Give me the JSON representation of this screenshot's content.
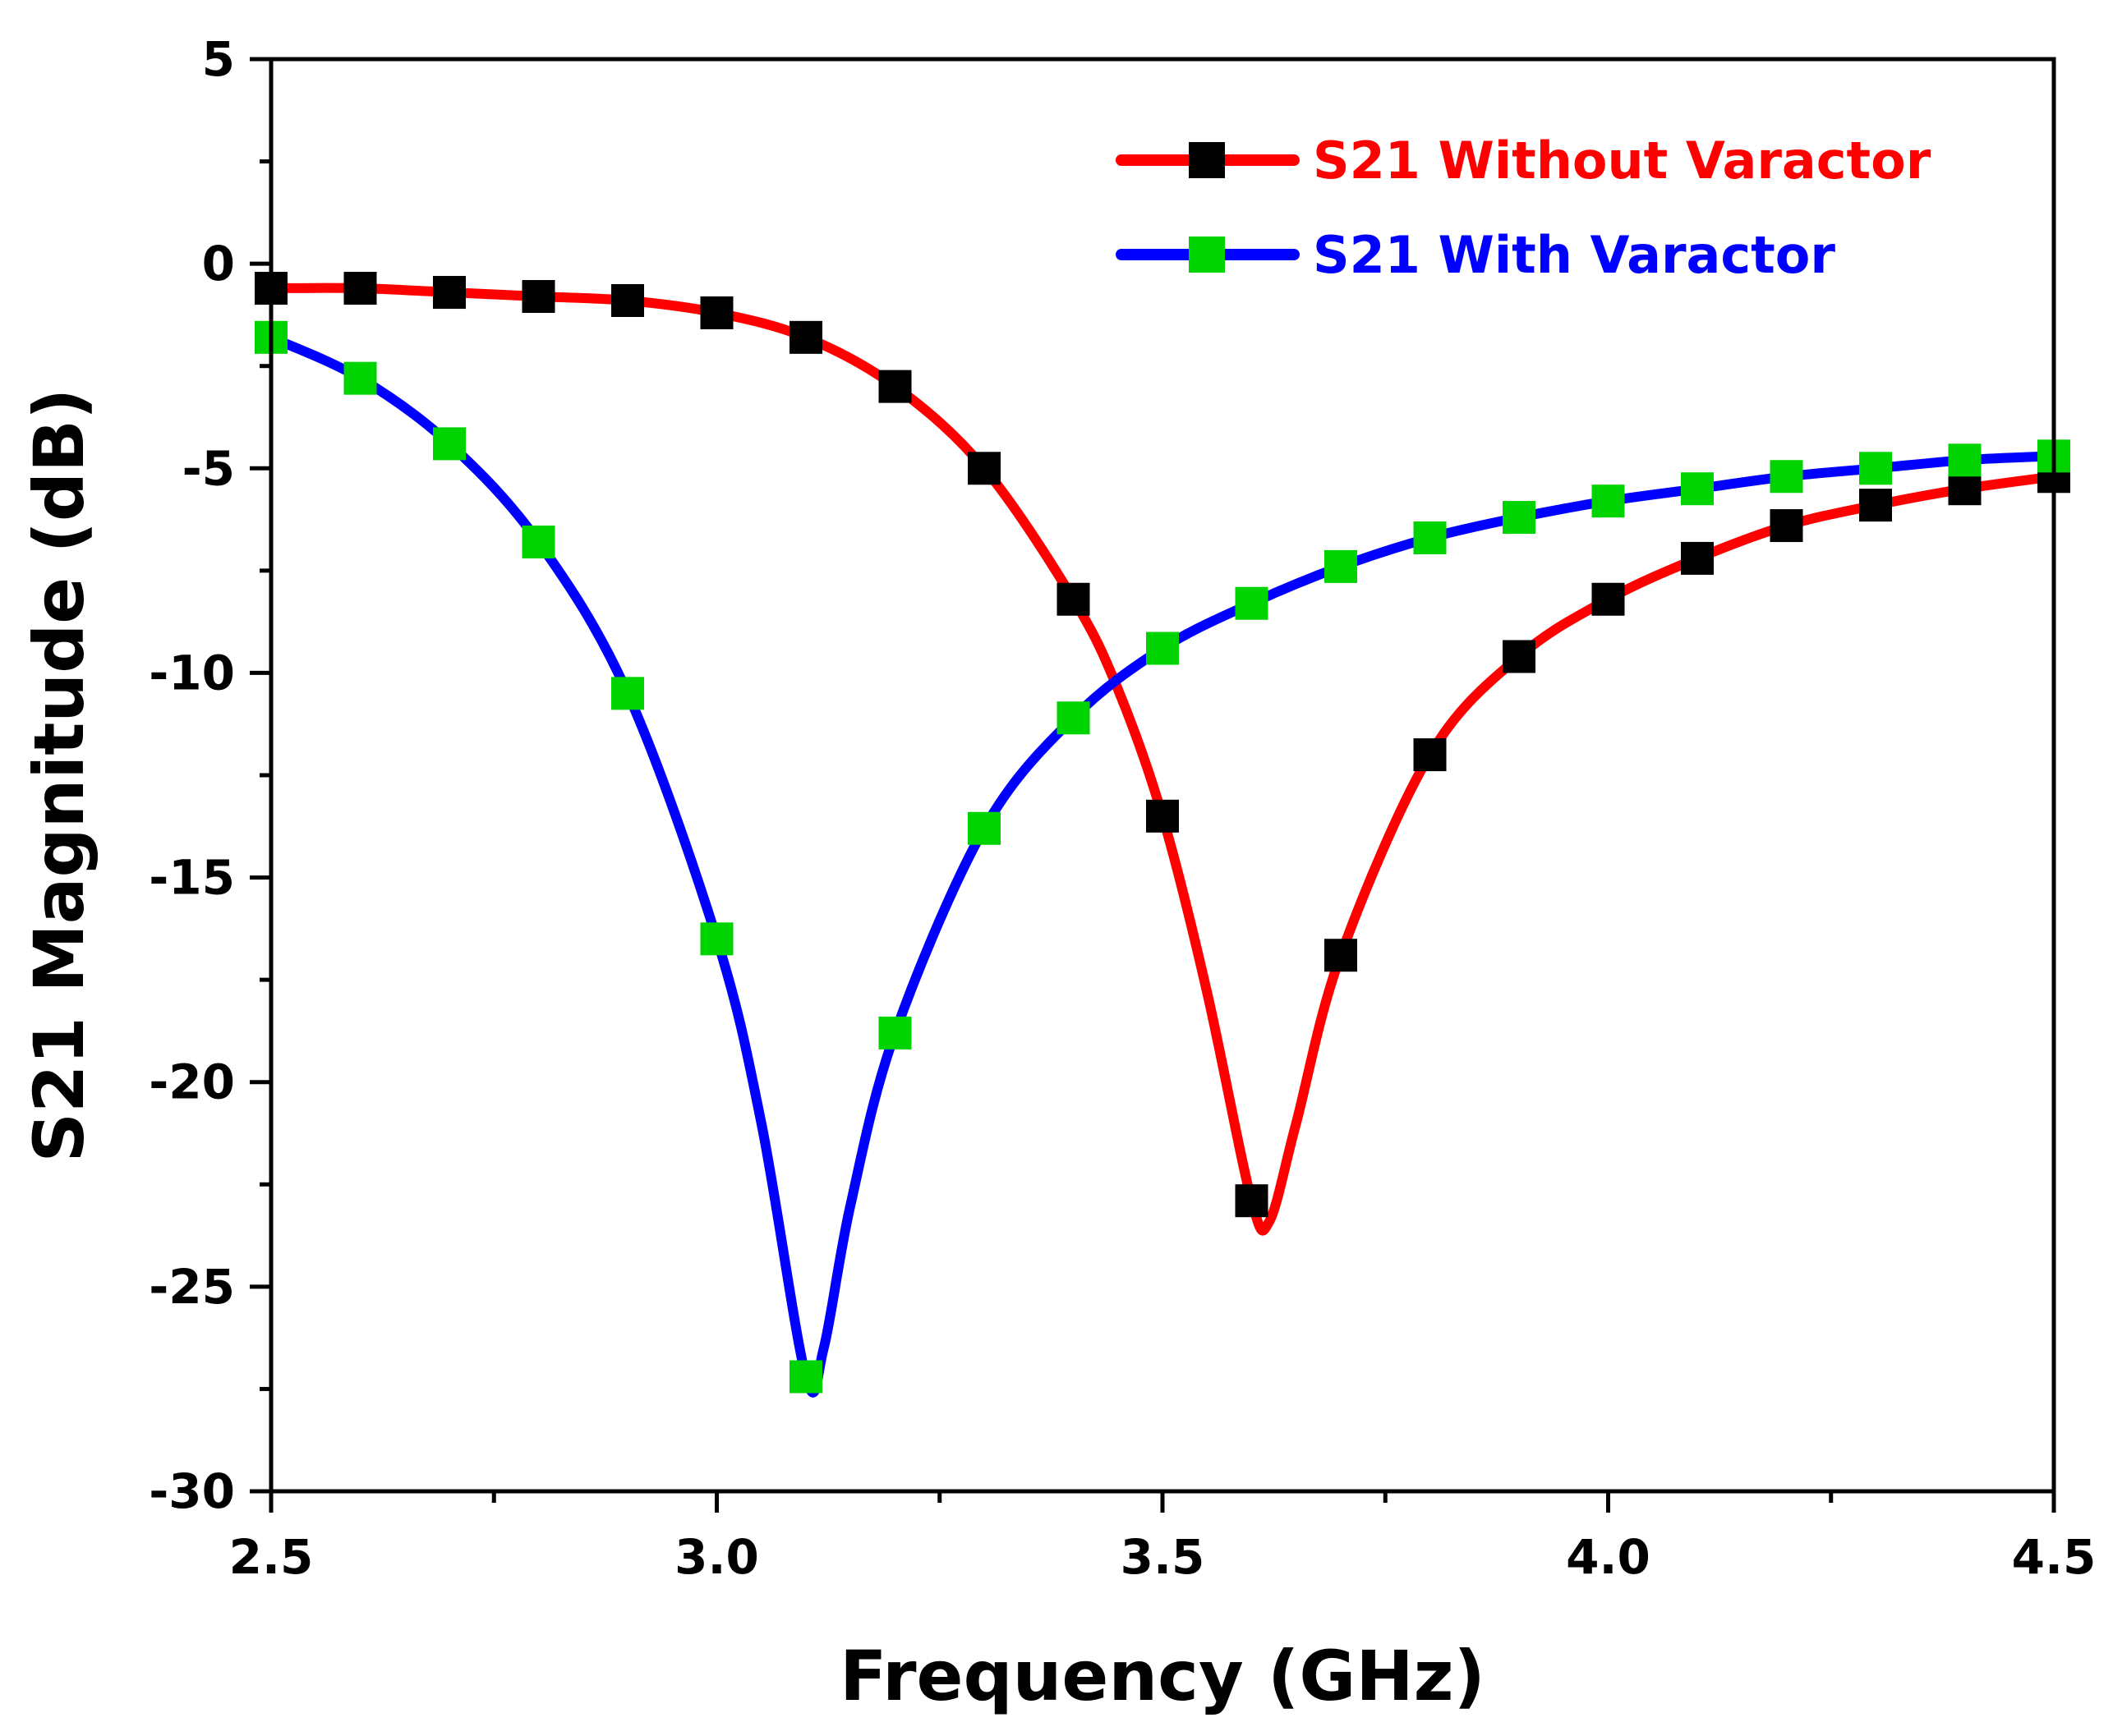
{
  "chart_data": {
    "type": "line",
    "title": "",
    "xlabel": "Frequency (GHz)",
    "ylabel": "S21 Magnitude (dB)",
    "xlim": [
      2.5,
      4.5
    ],
    "ylim": [
      -30,
      5
    ],
    "x_ticks": [
      2.5,
      3.0,
      3.5,
      4.0,
      4.5
    ],
    "x_tick_labels": [
      "2.5",
      "3.0",
      "3.5",
      "4.0",
      "4.5"
    ],
    "y_ticks": [
      5,
      0,
      -5,
      -10,
      -15,
      -20,
      -25,
      -30
    ],
    "y_tick_labels": [
      "5",
      "0",
      "-5",
      "-10",
      "-15",
      "-20",
      "-25",
      "-30"
    ],
    "grid": false,
    "legend_position": "top-right",
    "series": [
      {
        "name": "S21 Without Varactor",
        "line_color": "#ff0000",
        "marker_color": "#000000",
        "marker": "square",
        "x": [
          2.5,
          2.6,
          2.7,
          2.8,
          2.9,
          3.0,
          3.1,
          3.2,
          3.3,
          3.4,
          3.5,
          3.6,
          3.7,
          3.8,
          3.9,
          4.0,
          4.1,
          4.2,
          4.3,
          4.4,
          4.5
        ],
        "values": [
          -0.6,
          -0.6,
          -0.7,
          -0.8,
          -0.9,
          -1.2,
          -1.8,
          -3.0,
          -5.0,
          -8.2,
          -13.5,
          -22.9,
          -16.9,
          -12.0,
          -9.6,
          -8.2,
          -7.2,
          -6.4,
          -5.9,
          -5.5,
          -5.2
        ],
        "curve_x": [
          2.5,
          2.6,
          2.7,
          2.8,
          2.9,
          3.0,
          3.1,
          3.2,
          3.3,
          3.4,
          3.45,
          3.5,
          3.55,
          3.6,
          3.62,
          3.65,
          3.7,
          3.8,
          3.9,
          4.0,
          4.1,
          4.2,
          4.3,
          4.4,
          4.5
        ],
        "curve_y": [
          -0.6,
          -0.6,
          -0.7,
          -0.8,
          -0.9,
          -1.2,
          -1.8,
          -3.0,
          -5.0,
          -8.2,
          -10.4,
          -13.5,
          -17.8,
          -22.9,
          -23.4,
          -21.0,
          -16.9,
          -12.0,
          -9.6,
          -8.2,
          -7.2,
          -6.4,
          -5.9,
          -5.5,
          -5.2
        ]
      },
      {
        "name": "S21 With Varactor",
        "line_color": "#0000ff",
        "marker_color": "#00d400",
        "marker": "square",
        "x": [
          2.5,
          2.6,
          2.7,
          2.8,
          2.9,
          3.0,
          3.1,
          3.2,
          3.3,
          3.4,
          3.5,
          3.6,
          3.7,
          3.8,
          3.9,
          4.0,
          4.1,
          4.2,
          4.3,
          4.4,
          4.5
        ],
        "values": [
          -1.8,
          -2.8,
          -4.4,
          -6.8,
          -10.5,
          -16.5,
          -27.2,
          -18.8,
          -13.8,
          -11.1,
          -9.4,
          -8.3,
          -7.4,
          -6.7,
          -6.2,
          -5.8,
          -5.5,
          -5.2,
          -5.0,
          -4.8,
          -4.7
        ],
        "curve_x": [
          2.5,
          2.6,
          2.7,
          2.8,
          2.9,
          3.0,
          3.05,
          3.1,
          3.12,
          3.15,
          3.2,
          3.3,
          3.4,
          3.5,
          3.6,
          3.7,
          3.8,
          3.9,
          4.0,
          4.1,
          4.2,
          4.3,
          4.4,
          4.5
        ],
        "curve_y": [
          -1.8,
          -2.8,
          -4.4,
          -6.8,
          -10.5,
          -16.5,
          -21.0,
          -27.2,
          -26.5,
          -23.0,
          -18.8,
          -13.8,
          -11.1,
          -9.4,
          -8.3,
          -7.4,
          -6.7,
          -6.2,
          -5.8,
          -5.5,
          -5.2,
          -5.0,
          -4.8,
          -4.7
        ]
      }
    ]
  }
}
